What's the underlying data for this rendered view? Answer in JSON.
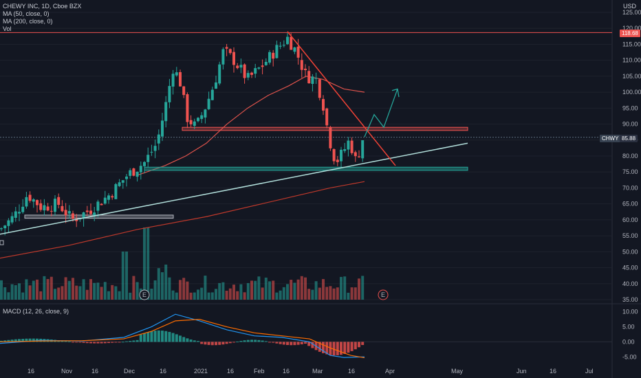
{
  "header": {
    "symbol_line": "CHEWY INC, 1D, Cboe BZX",
    "ma50_label": "MA (50, close, 0)",
    "ma200_label": "MA (200, close, 0)",
    "vol_label": "Vol",
    "macd_label": "MACD (12, 26, close, 9)",
    "currency": "USD"
  },
  "tags": {
    "resistance_value": "118.68",
    "ticker": "CHWY",
    "last_price": "85.88"
  },
  "colors": {
    "background": "#131722",
    "up": "#26a69a",
    "down": "#ef5350",
    "ma50": "#e0534c",
    "ma200": "#c0392b",
    "trendline_up": "#b2dfdb",
    "trendline_down": "#f44336",
    "projection": "#26a69a",
    "macd_line": "#2196f3",
    "signal_line": "#ff6d00"
  },
  "chart_data": [
    {
      "type": "candlestick",
      "title": "CHEWY INC, 1D, Cboe BZX",
      "ylim": [
        35,
        125
      ],
      "y_ticks": [
        "125.00",
        "120.00",
        "115.00",
        "110.00",
        "105.00",
        "100.00",
        "95.00",
        "90.00",
        "85.00",
        "80.00",
        "75.00",
        "70.00",
        "65.00",
        "60.00",
        "55.00",
        "50.00",
        "45.00",
        "40.00",
        "35.00"
      ],
      "x_ticks": [
        "16",
        "Nov",
        "16",
        "Dec",
        "16",
        "2021",
        "16",
        "Feb",
        "16",
        "Mar",
        "16",
        "Apr",
        "May",
        "Jun",
        "16",
        "Jul"
      ],
      "earnings_markers": [
        "E",
        "E"
      ],
      "horizontal_levels": [
        118.68,
        85.88
      ],
      "zones": [
        [
          88,
          89
        ],
        [
          75.5,
          76.5
        ],
        [
          60.5,
          61.5
        ]
      ]
    },
    {
      "type": "bar",
      "title": "Vol"
    },
    {
      "type": "line",
      "title": "MACD (12, 26, close, 9)",
      "ylim": [
        -7,
        12
      ],
      "y_ticks": [
        "10.00",
        "5.00",
        "0.00",
        "-5.00"
      ]
    }
  ]
}
